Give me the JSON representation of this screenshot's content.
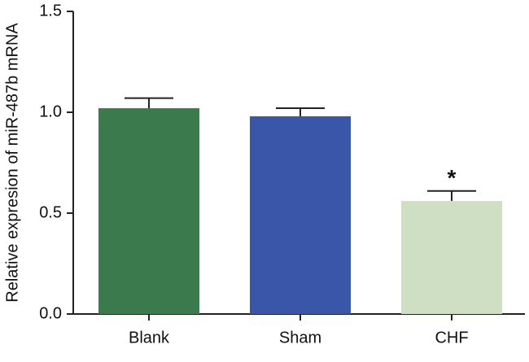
{
  "chart_data": {
    "type": "bar",
    "y_label": "Relative expresion of miR-487b mRNA",
    "categories": [
      "Blank",
      "Sham",
      "CHF"
    ],
    "values": [
      1.02,
      0.98,
      0.56
    ],
    "errors": [
      0.05,
      0.04,
      0.05
    ],
    "colors": [
      "#3a7a4c",
      "#3a56a8",
      "#cfdfc4"
    ],
    "value_annotations": [
      null,
      null,
      "*"
    ],
    "ylim": [
      0,
      1.5
    ],
    "yticks": [
      {
        "value": 0,
        "label": "0.0"
      },
      0.5,
      {
        "value": 1,
        "label": "1.0"
      },
      1.5
    ]
  }
}
